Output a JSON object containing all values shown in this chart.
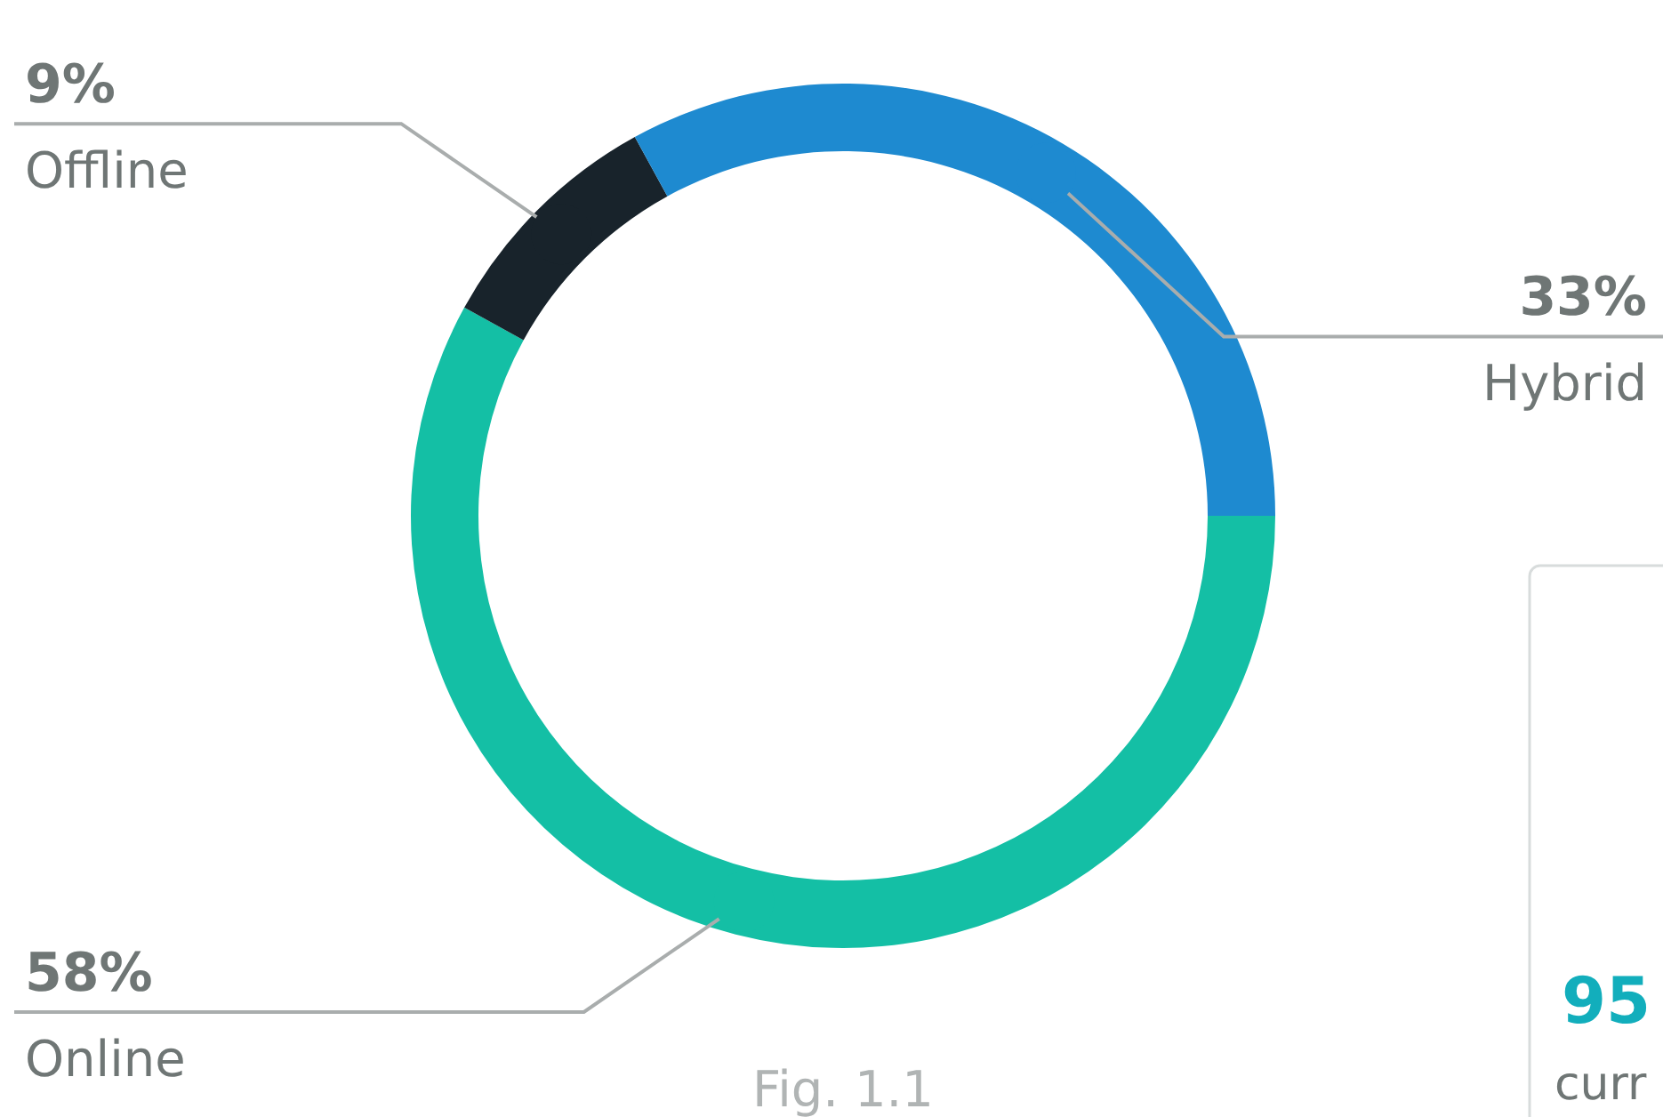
{
  "chart_data": {
    "type": "donut",
    "categories": [
      "Online",
      "Offline",
      "Hybrid"
    ],
    "values": [
      58,
      9,
      33
    ],
    "colors": [
      "#14bfa5",
      "#18232b",
      "#1e8ad0"
    ],
    "value_labels": [
      "58%",
      "9%",
      "33%"
    ],
    "annotations": [
      "Fig. 1.1",
      "95",
      "curr"
    ]
  }
}
